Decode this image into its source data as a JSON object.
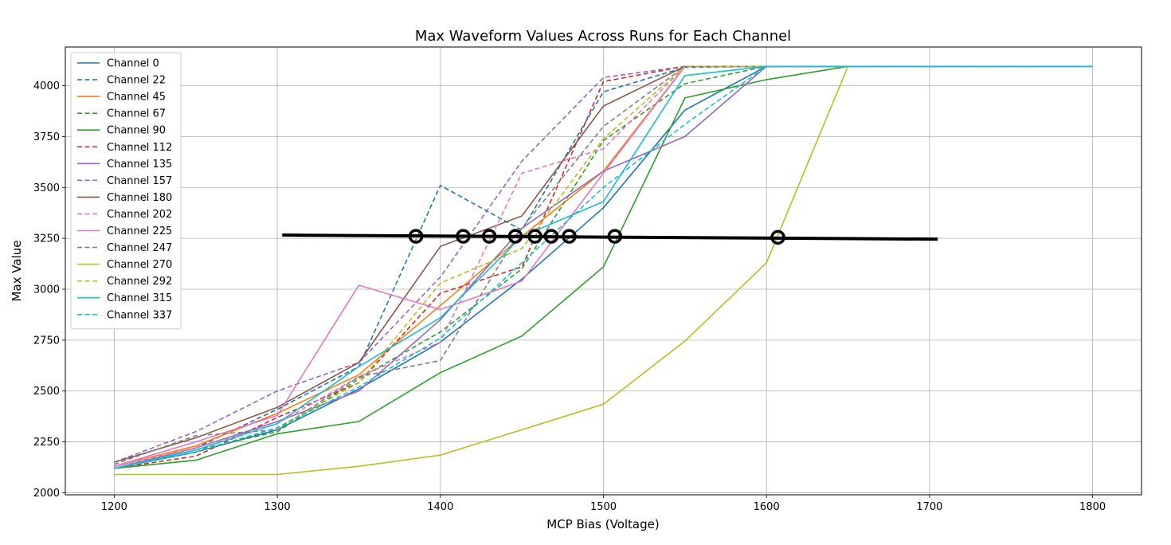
{
  "chart_data": {
    "type": "line",
    "title": "Max Waveform Values Across Runs for Each Channel",
    "xlabel": "MCP Bias (Voltage)",
    "ylabel": "Max Value",
    "xlim": [
      1170,
      1830
    ],
    "ylim": [
      1990,
      4190
    ],
    "xticks": [
      1200,
      1300,
      1400,
      1500,
      1600,
      1700,
      1800
    ],
    "yticks": [
      2000,
      2250,
      2500,
      2750,
      3000,
      3250,
      3500,
      3750,
      4000
    ],
    "grid": true,
    "legend_position": "upper-left",
    "series": [
      {
        "name": "Channel 0",
        "color": "#1f77b4",
        "dash": false,
        "points": [
          [
            1200,
            2120
          ],
          [
            1250,
            2200
          ],
          [
            1300,
            2310
          ],
          [
            1350,
            2510
          ],
          [
            1400,
            2740
          ],
          [
            1450,
            3050
          ],
          [
            1500,
            3400
          ],
          [
            1550,
            3880
          ],
          [
            1600,
            4095
          ],
          [
            1650,
            4095
          ],
          [
            1800,
            4095
          ]
        ]
      },
      {
        "name": "Channel 22",
        "color": "#1f77b4",
        "dash": true,
        "points": [
          [
            1200,
            2130
          ],
          [
            1250,
            2220
          ],
          [
            1300,
            2410
          ],
          [
            1350,
            2620
          ],
          [
            1400,
            3510
          ],
          [
            1450,
            3290
          ],
          [
            1500,
            3970
          ],
          [
            1550,
            4090
          ],
          [
            1600,
            4095
          ],
          [
            1650,
            4095
          ],
          [
            1800,
            4095
          ]
        ]
      },
      {
        "name": "Channel 45",
        "color": "#ff7f0e",
        "dash": false,
        "points": [
          [
            1200,
            2130
          ],
          [
            1250,
            2230
          ],
          [
            1300,
            2390
          ],
          [
            1350,
            2580
          ],
          [
            1400,
            2920
          ],
          [
            1450,
            3260
          ],
          [
            1500,
            3580
          ],
          [
            1550,
            4095
          ],
          [
            1600,
            4095
          ],
          [
            1650,
            4095
          ],
          [
            1800,
            4095
          ]
        ]
      },
      {
        "name": "Channel 67",
        "color": "#2ca02c",
        "dash": true,
        "points": [
          [
            1200,
            2120
          ],
          [
            1250,
            2210
          ],
          [
            1300,
            2300
          ],
          [
            1350,
            2560
          ],
          [
            1400,
            2790
          ],
          [
            1450,
            3100
          ],
          [
            1500,
            3730
          ],
          [
            1550,
            4010
          ],
          [
            1600,
            4095
          ],
          [
            1650,
            4095
          ],
          [
            1800,
            4095
          ]
        ]
      },
      {
        "name": "Channel 90",
        "color": "#2ca02c",
        "dash": false,
        "points": [
          [
            1200,
            2120
          ],
          [
            1250,
            2160
          ],
          [
            1300,
            2290
          ],
          [
            1350,
            2350
          ],
          [
            1400,
            2590
          ],
          [
            1450,
            2770
          ],
          [
            1500,
            3110
          ],
          [
            1550,
            3940
          ],
          [
            1600,
            4030
          ],
          [
            1650,
            4095
          ],
          [
            1800,
            4095
          ]
        ]
      },
      {
        "name": "Channel 112",
        "color": "#d62728",
        "dash": true,
        "points": [
          [
            1200,
            2120
          ],
          [
            1250,
            2180
          ],
          [
            1300,
            2370
          ],
          [
            1350,
            2540
          ],
          [
            1400,
            2980
          ],
          [
            1450,
            3110
          ],
          [
            1500,
            4020
          ],
          [
            1550,
            4095
          ],
          [
            1600,
            4095
          ],
          [
            1650,
            4095
          ],
          [
            1800,
            4095
          ]
        ]
      },
      {
        "name": "Channel 135",
        "color": "#9467bd",
        "dash": false,
        "points": [
          [
            1200,
            2120
          ],
          [
            1250,
            2220
          ],
          [
            1300,
            2350
          ],
          [
            1350,
            2500
          ],
          [
            1400,
            2850
          ],
          [
            1450,
            3300
          ],
          [
            1500,
            3580
          ],
          [
            1550,
            3750
          ],
          [
            1600,
            4095
          ],
          [
            1650,
            4095
          ],
          [
            1800,
            4095
          ]
        ]
      },
      {
        "name": "Channel 157",
        "color": "#9467bd",
        "dash": true,
        "points": [
          [
            1200,
            2150
          ],
          [
            1250,
            2300
          ],
          [
            1300,
            2500
          ],
          [
            1350,
            2640
          ],
          [
            1400,
            3060
          ],
          [
            1450,
            3630
          ],
          [
            1500,
            4040
          ],
          [
            1550,
            4095
          ],
          [
            1600,
            4095
          ],
          [
            1650,
            4095
          ],
          [
            1800,
            4095
          ]
        ]
      },
      {
        "name": "Channel 180",
        "color": "#8c564b",
        "dash": false,
        "points": [
          [
            1200,
            2150
          ],
          [
            1250,
            2270
          ],
          [
            1300,
            2420
          ],
          [
            1350,
            2640
          ],
          [
            1400,
            3210
          ],
          [
            1450,
            3360
          ],
          [
            1500,
            3900
          ],
          [
            1550,
            4095
          ],
          [
            1600,
            4095
          ],
          [
            1650,
            4095
          ],
          [
            1800,
            4095
          ]
        ]
      },
      {
        "name": "Channel 202",
        "color": "#e377c2",
        "dash": true,
        "points": [
          [
            1200,
            2130
          ],
          [
            1250,
            2220
          ],
          [
            1300,
            2340
          ],
          [
            1350,
            2570
          ],
          [
            1400,
            2740
          ],
          [
            1450,
            3570
          ],
          [
            1500,
            3690
          ],
          [
            1550,
            4095
          ],
          [
            1600,
            4095
          ],
          [
            1650,
            4095
          ],
          [
            1800,
            4095
          ]
        ]
      },
      {
        "name": "Channel 225",
        "color": "#e377c2",
        "dash": false,
        "points": [
          [
            1200,
            2130
          ],
          [
            1250,
            2250
          ],
          [
            1300,
            2380
          ],
          [
            1350,
            3020
          ],
          [
            1400,
            2900
          ],
          [
            1450,
            3040
          ],
          [
            1500,
            3570
          ],
          [
            1550,
            4095
          ],
          [
            1600,
            4095
          ],
          [
            1650,
            4095
          ],
          [
            1800,
            4095
          ]
        ]
      },
      {
        "name": "Channel 247",
        "color": "#7f7f7f",
        "dash": true,
        "points": [
          [
            1200,
            2140
          ],
          [
            1250,
            2280
          ],
          [
            1300,
            2310
          ],
          [
            1350,
            2570
          ],
          [
            1400,
            2650
          ],
          [
            1450,
            3300
          ],
          [
            1500,
            3800
          ],
          [
            1550,
            4095
          ],
          [
            1600,
            4095
          ],
          [
            1650,
            4095
          ],
          [
            1800,
            4095
          ]
        ]
      },
      {
        "name": "Channel 270",
        "color": "#bcbd22",
        "dash": false,
        "points": [
          [
            1200,
            2090
          ],
          [
            1250,
            2090
          ],
          [
            1300,
            2090
          ],
          [
            1350,
            2130
          ],
          [
            1400,
            2185
          ],
          [
            1450,
            2310
          ],
          [
            1500,
            2435
          ],
          [
            1550,
            2745
          ],
          [
            1600,
            3130
          ],
          [
            1650,
            4095
          ],
          [
            1800,
            4095
          ]
        ]
      },
      {
        "name": "Channel 292",
        "color": "#bcbd22",
        "dash": true,
        "points": [
          [
            1200,
            2120
          ],
          [
            1250,
            2200
          ],
          [
            1300,
            2320
          ],
          [
            1350,
            2540
          ],
          [
            1400,
            3030
          ],
          [
            1450,
            3200
          ],
          [
            1500,
            3740
          ],
          [
            1550,
            4095
          ],
          [
            1600,
            4095
          ],
          [
            1650,
            4095
          ],
          [
            1800,
            4095
          ]
        ]
      },
      {
        "name": "Channel 315",
        "color": "#17becf",
        "dash": false,
        "points": [
          [
            1200,
            2120
          ],
          [
            1250,
            2210
          ],
          [
            1300,
            2340
          ],
          [
            1350,
            2620
          ],
          [
            1400,
            2860
          ],
          [
            1450,
            3260
          ],
          [
            1500,
            3430
          ],
          [
            1550,
            4050
          ],
          [
            1600,
            4095
          ],
          [
            1650,
            4095
          ],
          [
            1800,
            4095
          ]
        ]
      },
      {
        "name": "Channel 337",
        "color": "#17becf",
        "dash": true,
        "points": [
          [
            1200,
            2120
          ],
          [
            1250,
            2200
          ],
          [
            1300,
            2320
          ],
          [
            1350,
            2520
          ],
          [
            1400,
            2760
          ],
          [
            1450,
            3130
          ],
          [
            1500,
            3500
          ],
          [
            1550,
            3810
          ],
          [
            1600,
            4095
          ],
          [
            1650,
            4095
          ],
          [
            1800,
            4095
          ]
        ]
      }
    ],
    "annotation_line": {
      "color": "#000000",
      "points": [
        [
          1303,
          3266
        ],
        [
          1705,
          3246
        ]
      ]
    },
    "annotation_markers": [
      {
        "x": 1385,
        "y": 3260
      },
      {
        "x": 1414,
        "y": 3260
      },
      {
        "x": 1430,
        "y": 3260
      },
      {
        "x": 1446,
        "y": 3260
      },
      {
        "x": 1458,
        "y": 3260
      },
      {
        "x": 1468,
        "y": 3260
      },
      {
        "x": 1479,
        "y": 3260
      },
      {
        "x": 1507,
        "y": 3260
      },
      {
        "x": 1607,
        "y": 3255
      }
    ]
  }
}
